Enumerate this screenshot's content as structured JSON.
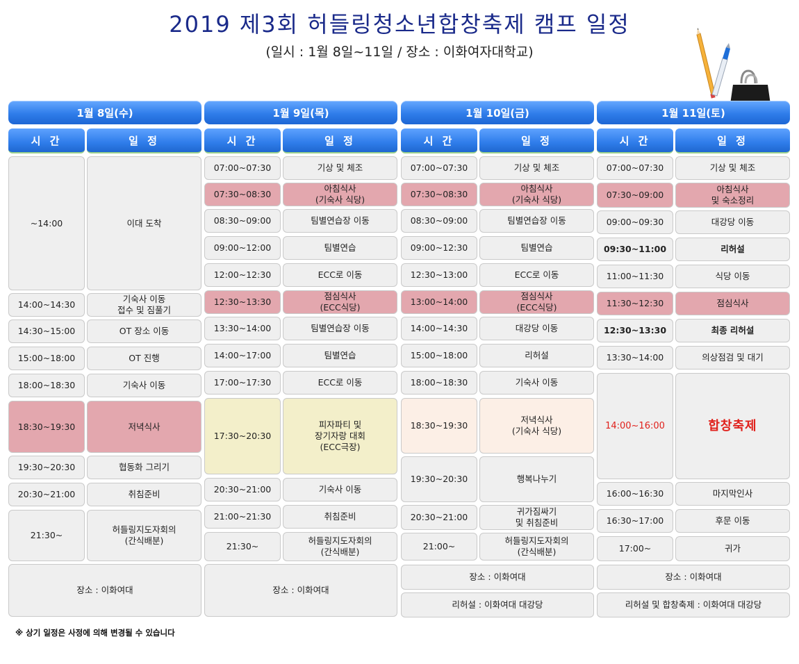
{
  "title": "2019 제3회 허들링청소년합창축제 캠프 일정",
  "subtitle": "(일시 : 1월 8일~11일 / 장소 : 이화여자대학교)",
  "column_headers": {
    "time": "시 간",
    "schedule": "일 정"
  },
  "days": [
    {
      "header": "1월 8일(수)",
      "rows": [
        {
          "time": "~14:00",
          "event": "이대 도착"
        },
        {
          "time": "14:00~14:30",
          "event": "기숙사 이동\n접수 및 짐풀기"
        },
        {
          "time": "14:30~15:00",
          "event": "OT 장소 이동"
        },
        {
          "time": "15:00~18:00",
          "event": "OT 진행"
        },
        {
          "time": "18:00~18:30",
          "event": "기숙사 이동"
        },
        {
          "time": "18:30~19:30",
          "event": "저녁식사"
        },
        {
          "time": "19:30~20:30",
          "event": "협동화 그리기"
        },
        {
          "time": "20:30~21:00",
          "event": "취침준비"
        },
        {
          "time": "21:30~",
          "event": "허들링지도자회의\n(간식배분)"
        }
      ],
      "footer": [
        "장소 : 이화여대"
      ]
    },
    {
      "header": "1월 9일(목)",
      "rows": [
        {
          "time": "07:00~07:30",
          "event": "기상 및 체조"
        },
        {
          "time": "07:30~08:30",
          "event": "아침식사\n(기숙사 식당)"
        },
        {
          "time": "08:30~09:00",
          "event": "팀별연습장 이동"
        },
        {
          "time": "09:00~12:00",
          "event": "팀별연습"
        },
        {
          "time": "12:00~12:30",
          "event": "ECC로 이동"
        },
        {
          "time": "12:30~13:30",
          "event": "점심식사\n(ECC식당)"
        },
        {
          "time": "13:30~14:00",
          "event": "팀별연습장 이동"
        },
        {
          "time": "14:00~17:00",
          "event": "팀별연습"
        },
        {
          "time": "17:00~17:30",
          "event": "ECC로 이동"
        },
        {
          "time": "17:30~20:30",
          "event": "피자파티 및\n장기자랑 대회\n(ECC극장)"
        },
        {
          "time": "20:30~21:00",
          "event": "기숙사 이동"
        },
        {
          "time": "21:00~21:30",
          "event": "취침준비"
        },
        {
          "time": "21:30~",
          "event": "허들링지도자회의\n(간식배분)"
        }
      ],
      "footer": [
        "장소 : 이화여대"
      ]
    },
    {
      "header": "1월 10일(금)",
      "rows": [
        {
          "time": "07:00~07:30",
          "event": "기상 및 체조"
        },
        {
          "time": "07:30~08:30",
          "event": "아침식사\n(기숙사 식당)"
        },
        {
          "time": "08:30~09:00",
          "event": "팀별연습장 이동"
        },
        {
          "time": "09:00~12:30",
          "event": "팀별연습"
        },
        {
          "time": "12:30~13:00",
          "event": "ECC로 이동"
        },
        {
          "time": "13:00~14:00",
          "event": "점심식사\n(ECC식당)"
        },
        {
          "time": "14:00~14:30",
          "event": "대강당 이동"
        },
        {
          "time": "15:00~18:00",
          "event": "리허설"
        },
        {
          "time": "18:00~18:30",
          "event": "기숙사 이동"
        },
        {
          "time": "18:30~19:30",
          "event": "저녁식사\n(기숙사 식당)"
        },
        {
          "time": "19:30~20:30",
          "event": "행복나누기"
        },
        {
          "time": "20:30~21:00",
          "event": "귀가짐싸기\n및 취침준비"
        },
        {
          "time": "21:00~",
          "event": "허들링지도자회의\n(간식배분)"
        }
      ],
      "footer": [
        "장소 : 이화여대",
        "리허설 : 이화여대 대강당"
      ]
    },
    {
      "header": "1월 11일(토)",
      "rows": [
        {
          "time": "07:00~07:30",
          "event": "기상 및 체조"
        },
        {
          "time": "07:30~09:00",
          "event": "아침식사\n및 숙소정리"
        },
        {
          "time": "09:00~09:30",
          "event": "대강당 이동"
        },
        {
          "time": "09:30~11:00",
          "event": "리허설"
        },
        {
          "time": "11:00~11:30",
          "event": "식당 이동"
        },
        {
          "time": "11:30~12:30",
          "event": "점심식사"
        },
        {
          "time": "12:30~13:30",
          "event": "최종 리허설"
        },
        {
          "time": "13:30~14:00",
          "event": "의상점검 및 대기"
        },
        {
          "time": "14:00~16:00",
          "event": "합창축제"
        },
        {
          "time": "16:00~16:30",
          "event": "마지막인사"
        },
        {
          "time": "16:30~17:00",
          "event": "후문 이동"
        },
        {
          "time": "17:00~",
          "event": "귀가"
        }
      ],
      "footer": [
        "장소 : 이화여대",
        "리허설 및 합창축제 : 이화여대 대강당"
      ]
    }
  ],
  "note": "※ 상기 일정은 사정에 의해 변경될 수 있습니다",
  "colors": {
    "header_blue": "#2f7dea",
    "meal_pink": "#e3a7ae",
    "party_yellow": "#f3efca",
    "dinner_peach": "#fcefe6",
    "festival_red": "#e0201b",
    "title_navy": "#1a2a8a"
  },
  "icons": [
    "pencil-icon",
    "pen-icon",
    "binder-clip-icon"
  ]
}
